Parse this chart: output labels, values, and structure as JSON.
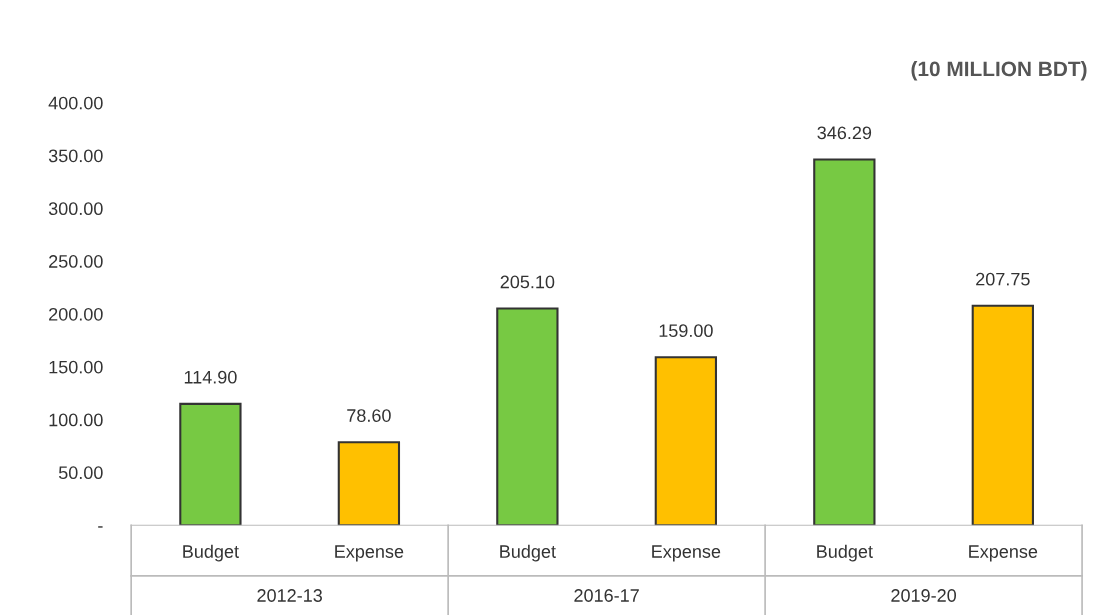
{
  "chart_data": {
    "type": "bar",
    "subtitle": "(10 MILLION BDT)",
    "categories": [
      "Budget",
      "Expense",
      "Budget",
      "Expense",
      "Budget",
      "Expense"
    ],
    "values": [
      114.9,
      78.6,
      205.1,
      159.0,
      346.29,
      207.75
    ],
    "colors": [
      "#77c943",
      "#ffc000",
      "#77c943",
      "#ffc000",
      "#77c943",
      "#ffc000"
    ],
    "value_labels": [
      "114.90",
      "78.60",
      "205.10",
      "159.00",
      "346.29",
      "207.75"
    ],
    "annotations": [
      "2012-13",
      "2016-17",
      "2019-20"
    ],
    "ylim": [
      0,
      400
    ],
    "yticks": [
      {
        "value": 0,
        "label": "-"
      },
      {
        "value": 50,
        "label": "50.00"
      },
      {
        "value": 100,
        "label": "100.00"
      },
      {
        "value": 150,
        "label": "150.00"
      },
      {
        "value": 200,
        "label": "200.00"
      },
      {
        "value": 250,
        "label": "250.00"
      },
      {
        "value": 300,
        "label": "300.00"
      },
      {
        "value": 350,
        "label": "350.00"
      },
      {
        "value": 400,
        "label": "400.00"
      }
    ],
    "grid": false,
    "legend": false
  }
}
